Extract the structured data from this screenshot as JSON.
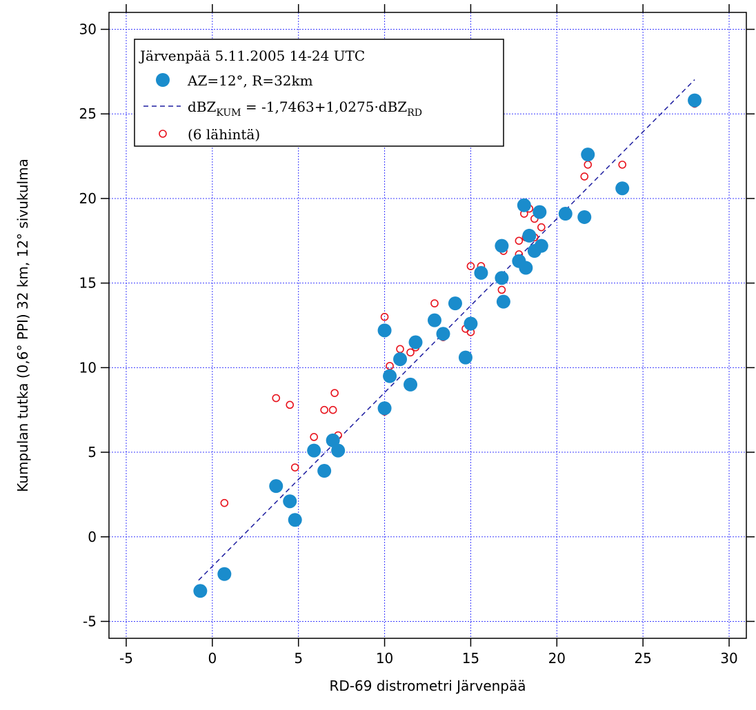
{
  "chart_data": {
    "type": "scatter",
    "xlabel": "RD-69 distrometri Järvenpää",
    "ylabel": "Kumpulan tutka (0,6° PPI) 32 km, 12° sivukulma",
    "xlim": [
      -6,
      31
    ],
    "ylim": [
      -6,
      31
    ],
    "xticks": [
      -5,
      0,
      5,
      10,
      15,
      20,
      25,
      30
    ],
    "yticks": [
      -5,
      0,
      5,
      10,
      15,
      20,
      25,
      30
    ],
    "grid": true,
    "legend": {
      "placement": "top-left",
      "title": "Järvenpää 5.11.2005 14-24 UTC",
      "entry_blue": "AZ=12°, R=32km",
      "fit_prefix": "dBZ",
      "fit_sub1": "KUM",
      "fit_middle": " = -1,7463+1,0275·dBZ",
      "fit_sub2": "RD",
      "entry_red": "(6 lähintä)"
    },
    "colors": {
      "blue": "#1a8ccc",
      "red": "#e8141e",
      "fit": "#1e1ea0",
      "grid": "#3a3aff"
    },
    "fit": {
      "intercept": -1.7463,
      "slope": 1.0275,
      "x_range": [
        -0.8,
        28
      ]
    },
    "series": [
      {
        "name": "AZ=12°, R=32km",
        "style": "filled-circle",
        "points": [
          [
            -0.7,
            -3.2
          ],
          [
            0.7,
            -2.2
          ],
          [
            3.7,
            3.0
          ],
          [
            4.5,
            2.1
          ],
          [
            4.8,
            1.0
          ],
          [
            5.9,
            5.1
          ],
          [
            6.5,
            3.9
          ],
          [
            7.0,
            5.7
          ],
          [
            7.3,
            5.1
          ],
          [
            10.0,
            12.2
          ],
          [
            10.0,
            7.6
          ],
          [
            10.3,
            9.5
          ],
          [
            10.9,
            10.5
          ],
          [
            11.5,
            9.0
          ],
          [
            11.8,
            11.5
          ],
          [
            12.9,
            12.8
          ],
          [
            13.4,
            12.0
          ],
          [
            14.1,
            13.8
          ],
          [
            14.7,
            10.6
          ],
          [
            15.0,
            12.6
          ],
          [
            15.6,
            15.6
          ],
          [
            16.8,
            17.2
          ],
          [
            16.8,
            15.3
          ],
          [
            16.9,
            13.9
          ],
          [
            17.8,
            16.3
          ],
          [
            18.1,
            19.6
          ],
          [
            18.2,
            15.9
          ],
          [
            18.4,
            17.8
          ],
          [
            18.7,
            16.9
          ],
          [
            19.0,
            19.2
          ],
          [
            19.1,
            17.2
          ],
          [
            20.5,
            19.1
          ],
          [
            21.6,
            18.9
          ],
          [
            21.8,
            22.6
          ],
          [
            23.8,
            20.6
          ],
          [
            28.0,
            25.8
          ]
        ]
      },
      {
        "name": "(6 lähintä)",
        "style": "open-circle",
        "points": [
          [
            -0.7,
            -3.3
          ],
          [
            0.7,
            2.0
          ],
          [
            3.7,
            8.2
          ],
          [
            4.5,
            7.8
          ],
          [
            4.8,
            4.1
          ],
          [
            5.9,
            5.9
          ],
          [
            6.5,
            7.5
          ],
          [
            7.0,
            7.5
          ],
          [
            7.1,
            8.5
          ],
          [
            7.3,
            6.0
          ],
          [
            10.0,
            13.0
          ],
          [
            10.0,
            7.4
          ],
          [
            10.3,
            10.1
          ],
          [
            10.9,
            11.1
          ],
          [
            11.5,
            10.9
          ],
          [
            11.8,
            11.2
          ],
          [
            12.9,
            13.8
          ],
          [
            13.4,
            11.8
          ],
          [
            14.1,
            13.9
          ],
          [
            14.7,
            12.3
          ],
          [
            15.0,
            16.0
          ],
          [
            15.0,
            12.1
          ],
          [
            15.6,
            16.0
          ],
          [
            16.8,
            17.1
          ],
          [
            16.8,
            14.6
          ],
          [
            16.9,
            16.9
          ],
          [
            17.8,
            16.7
          ],
          [
            17.8,
            17.5
          ],
          [
            18.1,
            19.1
          ],
          [
            18.2,
            17.7
          ],
          [
            18.4,
            19.4
          ],
          [
            18.7,
            18.8
          ],
          [
            18.7,
            17.7
          ],
          [
            19.0,
            19.3
          ],
          [
            19.1,
            18.3
          ],
          [
            20.5,
            19.0
          ],
          [
            21.6,
            21.3
          ],
          [
            21.8,
            22.0
          ],
          [
            23.8,
            22.0
          ],
          [
            28.0,
            25.6
          ]
        ]
      }
    ]
  }
}
